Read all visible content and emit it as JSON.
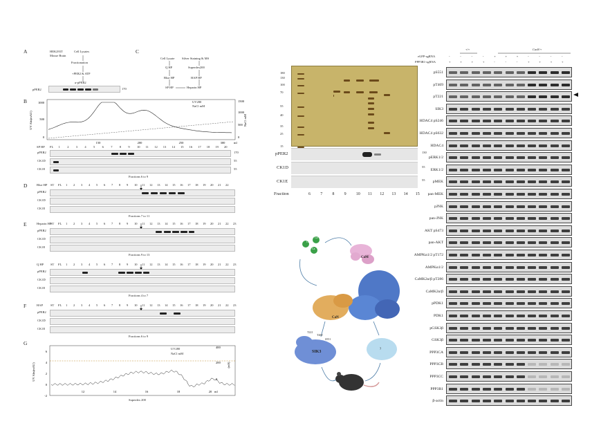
{
  "panelA": {
    "letter": "A",
    "source": [
      "HEK293T",
      "Mouse Brain"
    ],
    "steps": [
      "Cell Lysates",
      "Fractionation",
      "+PER2 & ATP",
      "α-pPER2"
    ],
    "row_label": "pPER2",
    "mw": "170"
  },
  "panelB": {
    "letter": "B",
    "ylabel": "UV Abs(mAU)",
    "y2label": "NaCl mM",
    "yticks": [
      "1000",
      "500",
      "0"
    ],
    "y2ticks": [
      "1500",
      "1000",
      "500",
      "0"
    ],
    "xticks": [
      "150",
      "200",
      "250",
      "300"
    ],
    "xunit": "ml",
    "legend": [
      "UV280",
      "NaCl mM"
    ],
    "column": "SP HP",
    "fractions": [
      "FL",
      "1",
      "2",
      "3",
      "4",
      "5",
      "6",
      "7",
      "8",
      "9",
      "10",
      "11",
      "12",
      "13",
      "14",
      "15",
      "16",
      "17",
      "18",
      "19",
      "20"
    ],
    "rows": [
      "pPER2",
      "CK1D",
      "CK1E"
    ],
    "mw": [
      "170",
      "55",
      "55"
    ],
    "note": "Fractions 6 to 9"
  },
  "panelC": {
    "letter": "C",
    "left_steps": [
      "Cell Lysate",
      "Q HP",
      "Blue HP",
      "SP HP"
    ],
    "right_steps": [
      "Silver Staining & MS",
      "Superdex200",
      "HAP HP",
      "Heparin HP"
    ]
  },
  "panelD": {
    "letter": "D",
    "column": "Blue HP",
    "fractions": [
      "ST",
      "FL",
      "1",
      "2",
      "3",
      "4",
      "5",
      "6",
      "7",
      "8",
      "9",
      "10",
      "11",
      "12",
      "13",
      "14",
      "15",
      "16",
      "17",
      "18",
      "19",
      "20",
      "21",
      "22"
    ],
    "rows": [
      "pPER2",
      "CK1D",
      "CK1E"
    ],
    "note": "Fractions 7 to 11"
  },
  "panelE": {
    "letter": "E",
    "column": "Heparin HP",
    "fractions": [
      "ST",
      "FL",
      "1",
      "2",
      "3",
      "4",
      "5",
      "6",
      "7",
      "8",
      "9",
      "10",
      "11",
      "12",
      "13",
      "14",
      "15",
      "16",
      "17",
      "18",
      "19",
      "20",
      "21",
      "22",
      "23"
    ],
    "rows": [
      "pPER2",
      "CK1D",
      "CK1E"
    ],
    "note": "Fractions 9 to 13"
  },
  "panelQ": {
    "column": "Q HP",
    "fractions": [
      "ST",
      "FL",
      "1",
      "2",
      "3",
      "4",
      "5",
      "6",
      "7",
      "8",
      "9",
      "10",
      "11",
      "12",
      "13",
      "14",
      "15",
      "16",
      "17",
      "18",
      "19",
      "20",
      "21",
      "22",
      "23"
    ],
    "rows": [
      "pPER2",
      "CK1D",
      "CK1E"
    ],
    "note": "Fractions 4 to 7"
  },
  "panelF": {
    "letter": "F",
    "column": "HAP",
    "fractions": [
      "ST",
      "FL",
      "1",
      "2",
      "3",
      "4",
      "5",
      "6",
      "7",
      "8",
      "9",
      "10",
      "11",
      "12",
      "13",
      "14",
      "15",
      "16",
      "17",
      "18",
      "19",
      "20",
      "21",
      "22",
      "23"
    ],
    "rows": [
      "pPER2",
      "CK1D",
      "CK1E"
    ],
    "note": "Fractions 6 to 9"
  },
  "panelG": {
    "letter": "G",
    "ylabel": "UV Abs(mAU)",
    "y2label": "(mS)",
    "yticks": [
      "6",
      "4",
      "2",
      "0",
      "-2"
    ],
    "y2ticks": [
      "400",
      "200",
      "0"
    ],
    "xticks": [
      "12",
      "14",
      "16",
      "18",
      "20"
    ],
    "xunit": "ml",
    "xlabel": "Superdex 200",
    "legend": [
      "UV280",
      "NaCl mM"
    ]
  },
  "silver": {
    "mw": [
      "180",
      "130",
      "100",
      "70",
      "55",
      "40",
      "35",
      "25",
      "15"
    ],
    "rows": [
      "pPER2",
      "CK1D",
      "CK1E"
    ],
    "row_mw": [
      "130",
      "55",
      "55"
    ],
    "fraction_label": "Fraction",
    "fractions": [
      "6",
      "7",
      "8",
      "9",
      "10",
      "11",
      "12",
      "13",
      "14",
      "15"
    ]
  },
  "schematic": {
    "cam": "CaM",
    "can": "CaN",
    "sik3": "SIK3",
    "ions": [
      "Ca",
      "Ca",
      "Ca"
    ],
    "phospho": [
      "T221",
      "T469",
      "S551"
    ],
    "unknown": "?"
  },
  "westerns": {
    "groups": [
      "+/+",
      "Cas9/+"
    ],
    "egfp_label": "eGFP-sgRNA",
    "ppp3r1_label": "PPP3R1-sgRNA",
    "egfp": [
      "-",
      "-",
      "-",
      "-",
      "+",
      "+",
      "+",
      "-",
      "-",
      "-",
      "-"
    ],
    "ppp3r1": [
      "+",
      "+",
      "+",
      "+",
      "-",
      "-",
      "-",
      "+",
      "+",
      "+",
      "+"
    ],
    "rows": [
      "pS551",
      "pT469",
      "pT221",
      "SIK3",
      "HDAC4 pS246",
      "HDAC4 pS632",
      "HDAC4",
      "pERK1/2",
      "ERK1/2",
      "pMEK",
      "pan-MEK",
      "pJNK",
      "pan-JNK",
      "AKT pS473",
      "pan-AKT",
      "AMPKα1/2 pT172",
      "AMPKα1/2",
      "CaMK2α/β pT286",
      "CaMK2α/β",
      "pPDK1",
      "PDK1",
      "pGSK3β",
      "GSK3β",
      "PPP3CA",
      "PPP3CB",
      "PPP3CC",
      "PPP3R1",
      "β-actin"
    ]
  }
}
